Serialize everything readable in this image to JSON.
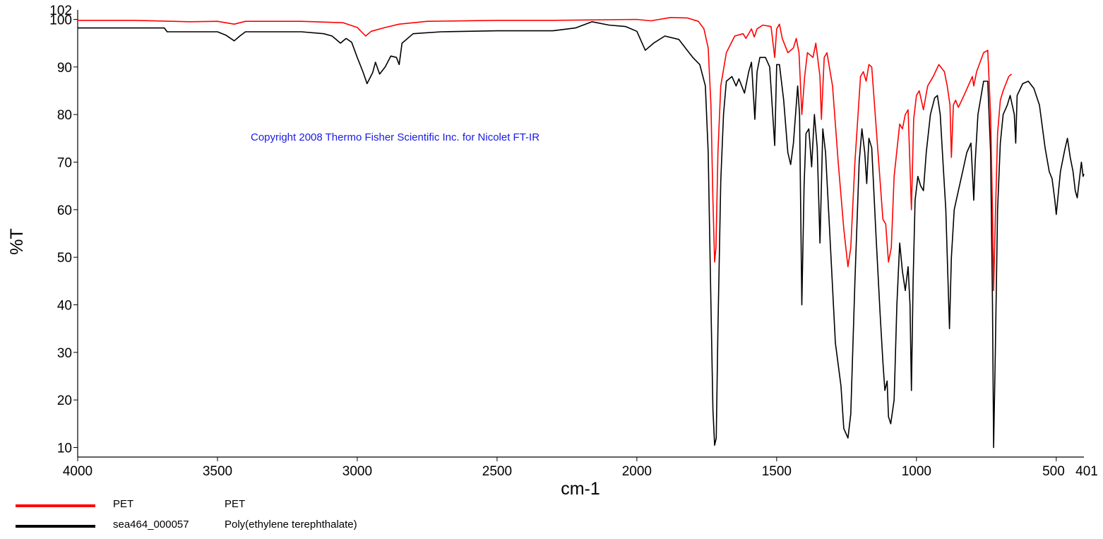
{
  "chart_data": {
    "type": "line",
    "xlabel": "cm-1",
    "ylabel": "%T",
    "xlim": [
      4000,
      401
    ],
    "ylim": [
      8,
      102
    ],
    "x_ticks": [
      4000,
      3500,
      3000,
      2500,
      2000,
      1500,
      1000,
      500
    ],
    "x_tick_labels": [
      "4000",
      "3500",
      "3000",
      "2500",
      "2000",
      "1500",
      "1000",
      "500"
    ],
    "x_end_label": "401",
    "y_ticks": [
      10,
      20,
      30,
      40,
      50,
      60,
      70,
      80,
      90,
      100
    ],
    "y_tick_labels": [
      "10",
      "20",
      "30",
      "40",
      "50",
      "60",
      "70",
      "80",
      "90",
      "100"
    ],
    "y_top_label": "102",
    "grid": false,
    "legend_position": "bottom-left",
    "annotation": "Copyright 2008 Thermo Fisher Scientific Inc. for Nicolet FT-IR",
    "series": [
      {
        "name": "PET",
        "description": "PET",
        "color": "#ff0000",
        "points": [
          [
            4000,
            99.8
          ],
          [
            3800,
            99.8
          ],
          [
            3600,
            99.5
          ],
          [
            3500,
            99.6
          ],
          [
            3440,
            99.0
          ],
          [
            3400,
            99.6
          ],
          [
            3200,
            99.6
          ],
          [
            3050,
            99.3
          ],
          [
            3000,
            98.3
          ],
          [
            2970,
            96.5
          ],
          [
            2950,
            97.5
          ],
          [
            2900,
            98.3
          ],
          [
            2850,
            99.0
          ],
          [
            2750,
            99.6
          ],
          [
            2500,
            99.8
          ],
          [
            2300,
            99.8
          ],
          [
            2000,
            100.0
          ],
          [
            1950,
            99.7
          ],
          [
            1880,
            100.4
          ],
          [
            1820,
            100.3
          ],
          [
            1780,
            99.6
          ],
          [
            1760,
            98.0
          ],
          [
            1745,
            94.0
          ],
          [
            1735,
            82.0
          ],
          [
            1728,
            62.0
          ],
          [
            1722,
            49.0
          ],
          [
            1717,
            52.0
          ],
          [
            1710,
            72.0
          ],
          [
            1700,
            86.0
          ],
          [
            1680,
            93.0
          ],
          [
            1650,
            96.5
          ],
          [
            1620,
            97.0
          ],
          [
            1610,
            96.0
          ],
          [
            1590,
            98.0
          ],
          [
            1580,
            96.3
          ],
          [
            1570,
            98.0
          ],
          [
            1550,
            98.8
          ],
          [
            1520,
            98.5
          ],
          [
            1507,
            92.0
          ],
          [
            1500,
            98.0
          ],
          [
            1490,
            99.0
          ],
          [
            1480,
            96.0
          ],
          [
            1460,
            93.0
          ],
          [
            1440,
            94.0
          ],
          [
            1430,
            96.0
          ],
          [
            1420,
            93.0
          ],
          [
            1410,
            80.0
          ],
          [
            1400,
            88.0
          ],
          [
            1390,
            93.0
          ],
          [
            1370,
            92.0
          ],
          [
            1360,
            95.0
          ],
          [
            1345,
            88.0
          ],
          [
            1340,
            79.0
          ],
          [
            1330,
            92.0
          ],
          [
            1320,
            93.0
          ],
          [
            1300,
            86.0
          ],
          [
            1280,
            70.0
          ],
          [
            1260,
            56.0
          ],
          [
            1245,
            48.0
          ],
          [
            1235,
            52.0
          ],
          [
            1220,
            70.0
          ],
          [
            1200,
            88.0
          ],
          [
            1190,
            89.0
          ],
          [
            1180,
            87.0
          ],
          [
            1170,
            90.5
          ],
          [
            1160,
            90.0
          ],
          [
            1140,
            74.0
          ],
          [
            1120,
            58.0
          ],
          [
            1110,
            57.0
          ],
          [
            1100,
            49.0
          ],
          [
            1090,
            52.0
          ],
          [
            1080,
            67.0
          ],
          [
            1060,
            78.0
          ],
          [
            1050,
            77.0
          ],
          [
            1040,
            80.0
          ],
          [
            1030,
            81.0
          ],
          [
            1018,
            60.0
          ],
          [
            1010,
            79.0
          ],
          [
            1000,
            84.0
          ],
          [
            990,
            85.0
          ],
          [
            975,
            81.0
          ],
          [
            960,
            86.0
          ],
          [
            940,
            88.0
          ],
          [
            920,
            90.5
          ],
          [
            900,
            89.0
          ],
          [
            890,
            86.0
          ],
          [
            880,
            82.0
          ],
          [
            875,
            71.0
          ],
          [
            868,
            82.0
          ],
          [
            860,
            83.0
          ],
          [
            850,
            81.5
          ],
          [
            830,
            84.0
          ],
          [
            800,
            88.0
          ],
          [
            795,
            86.0
          ],
          [
            785,
            89.0
          ],
          [
            760,
            93.0
          ],
          [
            745,
            93.5
          ],
          [
            735,
            80.0
          ],
          [
            728,
            60.0
          ],
          [
            724,
            43.0
          ],
          [
            718,
            58.0
          ],
          [
            710,
            76.0
          ],
          [
            700,
            83.0
          ],
          [
            690,
            85.0
          ],
          [
            670,
            88.0
          ],
          [
            660,
            88.5
          ]
        ]
      },
      {
        "name": "sea464_000057",
        "description": "Poly(ethylene terephthalate)",
        "color": "#000000",
        "points": [
          [
            4000,
            98.2
          ],
          [
            3690,
            98.2
          ],
          [
            3680,
            97.4
          ],
          [
            3500,
            97.4
          ],
          [
            3470,
            96.7
          ],
          [
            3440,
            95.5
          ],
          [
            3420,
            96.5
          ],
          [
            3400,
            97.4
          ],
          [
            3200,
            97.4
          ],
          [
            3120,
            97.0
          ],
          [
            3090,
            96.5
          ],
          [
            3060,
            95.0
          ],
          [
            3040,
            96.0
          ],
          [
            3020,
            95.2
          ],
          [
            3000,
            92.0
          ],
          [
            2980,
            89.0
          ],
          [
            2965,
            86.5
          ],
          [
            2945,
            88.8
          ],
          [
            2935,
            91.0
          ],
          [
            2920,
            88.5
          ],
          [
            2900,
            90.0
          ],
          [
            2880,
            92.3
          ],
          [
            2860,
            92.0
          ],
          [
            2850,
            90.5
          ],
          [
            2840,
            95.0
          ],
          [
            2800,
            97.0
          ],
          [
            2700,
            97.4
          ],
          [
            2500,
            97.6
          ],
          [
            2300,
            97.6
          ],
          [
            2220,
            98.2
          ],
          [
            2160,
            99.5
          ],
          [
            2100,
            98.8
          ],
          [
            2040,
            98.5
          ],
          [
            2000,
            97.5
          ],
          [
            1970,
            93.5
          ],
          [
            1940,
            95.0
          ],
          [
            1900,
            96.5
          ],
          [
            1850,
            95.8
          ],
          [
            1820,
            93.5
          ],
          [
            1800,
            92.0
          ],
          [
            1775,
            90.5
          ],
          [
            1755,
            86.0
          ],
          [
            1745,
            72.0
          ],
          [
            1735,
            40.0
          ],
          [
            1728,
            18.0
          ],
          [
            1722,
            10.5
          ],
          [
            1716,
            12.0
          ],
          [
            1710,
            35.0
          ],
          [
            1700,
            66.0
          ],
          [
            1690,
            80.0
          ],
          [
            1680,
            87.0
          ],
          [
            1660,
            88.0
          ],
          [
            1645,
            86.0
          ],
          [
            1635,
            87.5
          ],
          [
            1615,
            84.5
          ],
          [
            1600,
            89.0
          ],
          [
            1590,
            91.0
          ],
          [
            1578,
            79.0
          ],
          [
            1570,
            89.0
          ],
          [
            1560,
            92.0
          ],
          [
            1540,
            92.0
          ],
          [
            1525,
            90.0
          ],
          [
            1507,
            73.5
          ],
          [
            1500,
            90.5
          ],
          [
            1490,
            90.5
          ],
          [
            1475,
            83.0
          ],
          [
            1460,
            72.0
          ],
          [
            1450,
            69.5
          ],
          [
            1440,
            74.0
          ],
          [
            1425,
            86.0
          ],
          [
            1418,
            80.0
          ],
          [
            1410,
            40.0
          ],
          [
            1402,
            65.0
          ],
          [
            1395,
            76.0
          ],
          [
            1385,
            77.0
          ],
          [
            1375,
            69.0
          ],
          [
            1365,
            80.0
          ],
          [
            1355,
            73.0
          ],
          [
            1345,
            53.0
          ],
          [
            1340,
            65.0
          ],
          [
            1335,
            77.0
          ],
          [
            1325,
            72.0
          ],
          [
            1310,
            55.0
          ],
          [
            1290,
            32.0
          ],
          [
            1270,
            23.0
          ],
          [
            1260,
            14.0
          ],
          [
            1245,
            12.0
          ],
          [
            1235,
            17.0
          ],
          [
            1220,
            45.0
          ],
          [
            1205,
            70.0
          ],
          [
            1195,
            77.0
          ],
          [
            1185,
            72.0
          ],
          [
            1178,
            65.5
          ],
          [
            1170,
            75.0
          ],
          [
            1160,
            73.0
          ],
          [
            1145,
            55.0
          ],
          [
            1130,
            38.0
          ],
          [
            1120,
            28.0
          ],
          [
            1113,
            22.0
          ],
          [
            1105,
            24.0
          ],
          [
            1100,
            16.5
          ],
          [
            1092,
            15.0
          ],
          [
            1080,
            20.0
          ],
          [
            1070,
            40.0
          ],
          [
            1060,
            53.0
          ],
          [
            1050,
            47.0
          ],
          [
            1040,
            43.0
          ],
          [
            1030,
            48.0
          ],
          [
            1023,
            40.0
          ],
          [
            1018,
            22.0
          ],
          [
            1012,
            45.0
          ],
          [
            1005,
            62.0
          ],
          [
            995,
            67.0
          ],
          [
            985,
            65.0
          ],
          [
            975,
            64.0
          ],
          [
            965,
            72.0
          ],
          [
            950,
            80.0
          ],
          [
            935,
            83.5
          ],
          [
            925,
            84.0
          ],
          [
            915,
            80.0
          ],
          [
            905,
            70.0
          ],
          [
            895,
            60.0
          ],
          [
            882,
            35.0
          ],
          [
            875,
            50.0
          ],
          [
            865,
            60.0
          ],
          [
            850,
            64.0
          ],
          [
            835,
            68.0
          ],
          [
            820,
            72.0
          ],
          [
            805,
            74.0
          ],
          [
            795,
            62.0
          ],
          [
            790,
            70.0
          ],
          [
            780,
            80.0
          ],
          [
            760,
            87.0
          ],
          [
            745,
            87.0
          ],
          [
            735,
            72.0
          ],
          [
            728,
            40.0
          ],
          [
            724,
            10.0
          ],
          [
            718,
            30.0
          ],
          [
            710,
            60.0
          ],
          [
            700,
            74.0
          ],
          [
            690,
            80.0
          ],
          [
            675,
            82.0
          ],
          [
            665,
            84.0
          ],
          [
            650,
            80.0
          ],
          [
            645,
            74.0
          ],
          [
            640,
            84.0
          ],
          [
            620,
            86.5
          ],
          [
            600,
            87.0
          ],
          [
            580,
            85.5
          ],
          [
            560,
            82.0
          ],
          [
            540,
            73.0
          ],
          [
            525,
            68.0
          ],
          [
            515,
            66.5
          ],
          [
            505,
            62.0
          ],
          [
            500,
            59.0
          ],
          [
            495,
            62.0
          ],
          [
            485,
            68.0
          ],
          [
            470,
            72.5
          ],
          [
            460,
            75.0
          ],
          [
            450,
            71.0
          ],
          [
            440,
            68.0
          ],
          [
            432,
            64.0
          ],
          [
            425,
            62.5
          ],
          [
            418,
            66.0
          ],
          [
            410,
            70.0
          ],
          [
            404,
            67.0
          ],
          [
            401,
            67.5
          ]
        ]
      }
    ]
  }
}
